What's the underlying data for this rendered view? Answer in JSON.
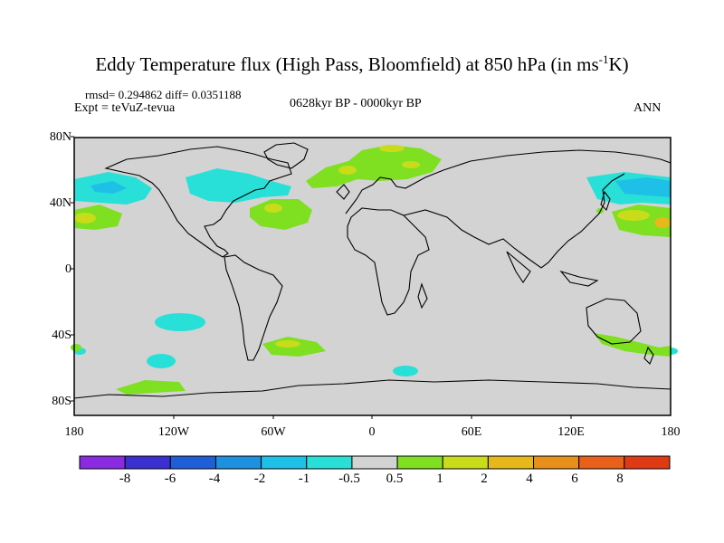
{
  "title": {
    "main": "Eddy Temperature flux (High Pass, Bloomfield) at 850 hPa (in ms",
    "sup": "-1",
    "end": "K)"
  },
  "stats": "rmsd= 0.294862 diff= 0.0351188",
  "experiment": "Expt = teVuZ-tevua",
  "period": "0628kyr BP - 0000kyr BP",
  "season": "ANN",
  "lat_labels": [
    "80N",
    "40N",
    "0",
    "40S",
    "80S"
  ],
  "lon_labels": [
    "180",
    "120W",
    "60W",
    "0",
    "60E",
    "120E",
    "180"
  ],
  "colorbar": {
    "labels": [
      "-8",
      "-6",
      "-4",
      "-2",
      "-1",
      "-0.5",
      "0.5",
      "1",
      "2",
      "4",
      "6",
      "8"
    ],
    "colors": [
      "#8a2be2",
      "#3a2fd0",
      "#1e5fd8",
      "#1e90e0",
      "#1ec0e8",
      "#28e0d8",
      "#d3d3d3",
      "#7ee021",
      "#c8dc1a",
      "#e6b81a",
      "#e8901a",
      "#e8601a",
      "#e03a14"
    ]
  },
  "map_colors": {
    "land_ocean": "#d3d3d3",
    "positive_weak": "#7ee021",
    "positive_strong": "#c8dc1a",
    "negative_weak": "#28e0d8",
    "negative_strong": "#1ec0e8"
  }
}
